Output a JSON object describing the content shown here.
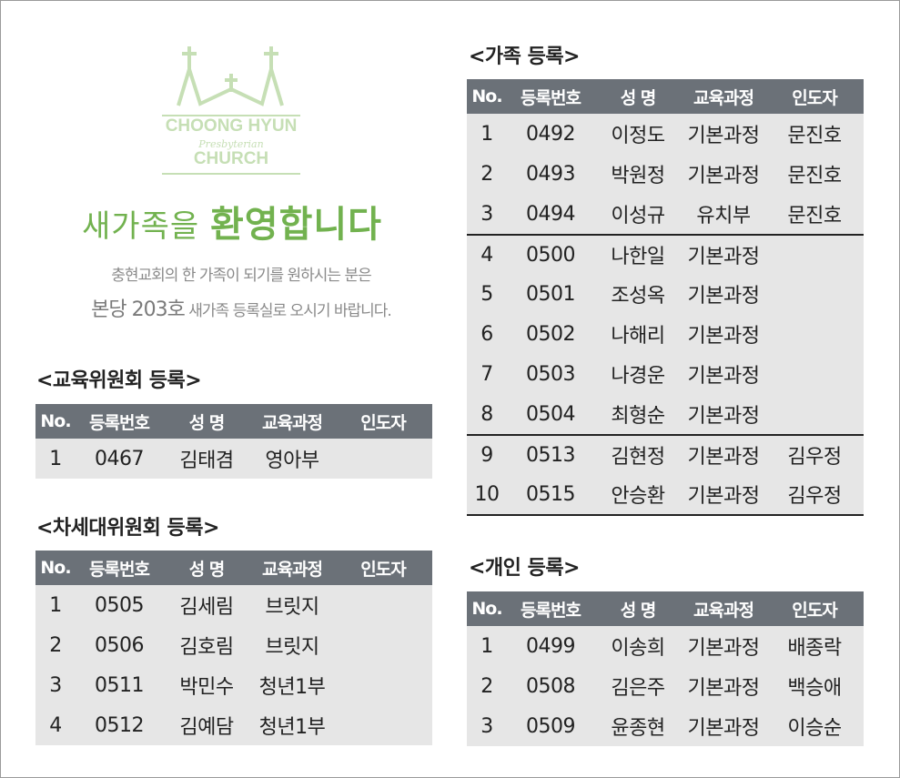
{
  "logo": {
    "line1": "CHOONG HYUN",
    "line2": "Presbyterian",
    "line3": "CHURCH",
    "color": "#c6dfb5"
  },
  "welcome": {
    "part1": "새가족을 ",
    "part2": "환영합니다"
  },
  "subtitle": {
    "line1": "충현교회의 한 가족이 되기를 원하시는 분은",
    "line2_big": "본당 203호",
    "line2_rest": " 새가족 등록실로 오시기 바랍니다."
  },
  "headers": [
    "No.",
    "등록번호",
    "성 명",
    "교육과정",
    "인도자"
  ],
  "tables": {
    "edu": {
      "title": "<교육위원회 등록>",
      "rows": [
        [
          "1",
          "0467",
          "김태겸",
          "영아부",
          ""
        ]
      ]
    },
    "next": {
      "title": "<차세대위원회 등록>",
      "rows": [
        [
          "1",
          "0505",
          "김세림",
          "브릿지",
          ""
        ],
        [
          "2",
          "0506",
          "김호림",
          "브릿지",
          ""
        ],
        [
          "3",
          "0511",
          "박민수",
          "청년1부",
          ""
        ],
        [
          "4",
          "0512",
          "김예담",
          "청년1부",
          ""
        ]
      ]
    },
    "family": {
      "title": "<가족 등록>",
      "rows": [
        [
          "1",
          "0492",
          "이정도",
          "기본과정",
          "문진호"
        ],
        [
          "2",
          "0493",
          "박원정",
          "기본과정",
          "문진호"
        ],
        [
          "3",
          "0494",
          "이성규",
          "유치부",
          "문진호"
        ],
        [
          "4",
          "0500",
          "나한일",
          "기본과정",
          ""
        ],
        [
          "5",
          "0501",
          "조성옥",
          "기본과정",
          ""
        ],
        [
          "6",
          "0502",
          "나해리",
          "기본과정",
          ""
        ],
        [
          "7",
          "0503",
          "나경운",
          "기본과정",
          ""
        ],
        [
          "8",
          "0504",
          "최형순",
          "기본과정",
          ""
        ],
        [
          "9",
          "0513",
          "김현정",
          "기본과정",
          "김우정"
        ],
        [
          "10",
          "0515",
          "안승환",
          "기본과정",
          "김우정"
        ]
      ]
    },
    "personal": {
      "title": "<개인 등록>",
      "rows": [
        [
          "1",
          "0499",
          "이송희",
          "기본과정",
          "배종락"
        ],
        [
          "2",
          "0508",
          "김은주",
          "기본과정",
          "백승애"
        ],
        [
          "3",
          "0509",
          "윤종현",
          "기본과정",
          "이승순"
        ]
      ]
    }
  },
  "colors": {
    "header_bg": "#6b7178",
    "row_bg": "#e6e6e6",
    "accent_green": "#72b24f"
  }
}
